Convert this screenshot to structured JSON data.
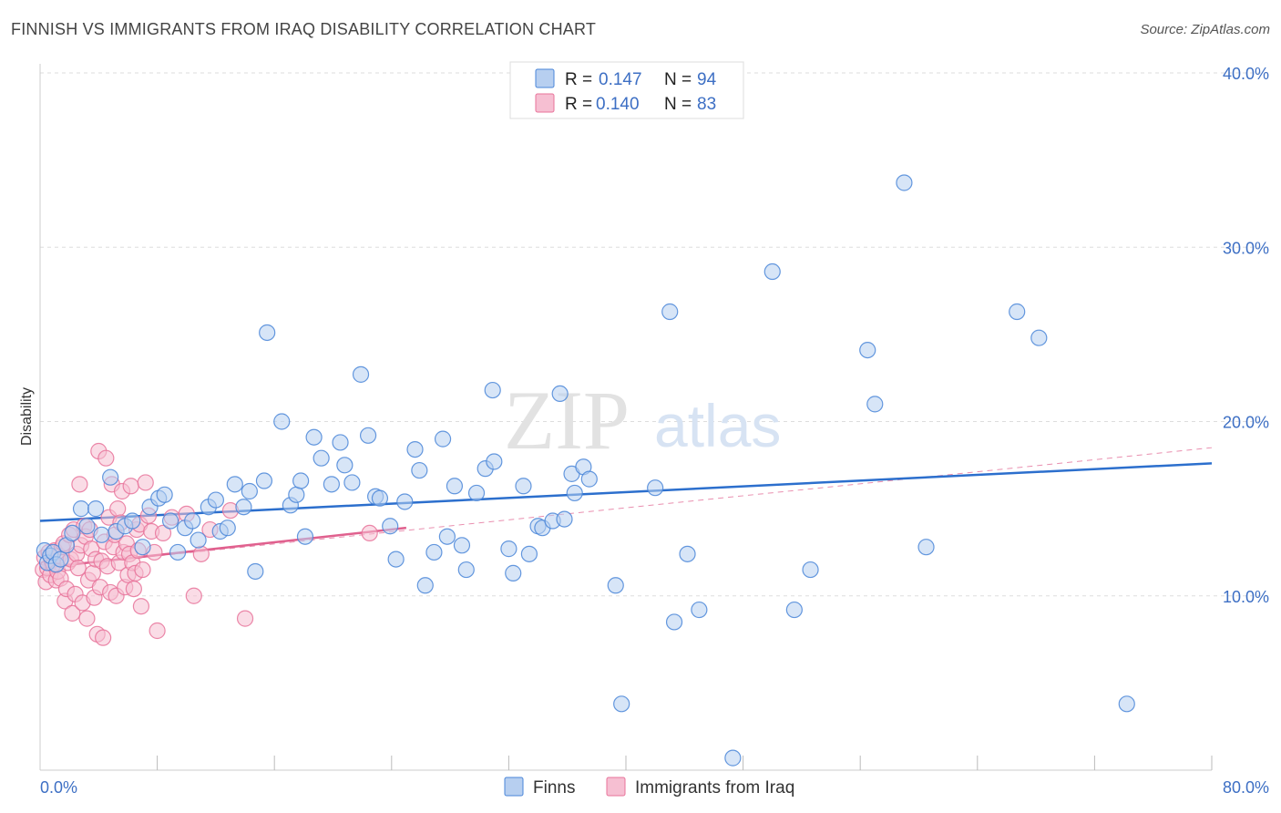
{
  "title": "FINNISH VS IMMIGRANTS FROM IRAQ DISABILITY CORRELATION CHART",
  "source": "Source: ZipAtlas.com",
  "watermark": {
    "zip": "ZIP",
    "atlas": "atlas"
  },
  "colors": {
    "finns": "#4a86d8",
    "finns_fill": "#b7cff0",
    "finns_line": "#2c6fcd",
    "iraq": "#e8739a",
    "iraq_fill": "#f6bfd2",
    "iraq_line": "#e0608e",
    "tick_label": "#3d6fc4",
    "grid": "#dddddd"
  },
  "legend": {
    "rows": [
      {
        "r_label": "R =",
        "r_value": "0.147",
        "n_label": "N =",
        "n_value": "94"
      },
      {
        "r_label": "R =",
        "r_value": "0.140",
        "n_label": "N =",
        "n_value": "83"
      }
    ]
  },
  "chart_data": {
    "type": "scatter",
    "title": "FINNISH VS IMMIGRANTS FROM IRAQ DISABILITY CORRELATION CHART",
    "xlabel": "",
    "ylabel": "Disability",
    "xlim": [
      0,
      80
    ],
    "ylim": [
      0,
      40
    ],
    "x_tick_labels": [
      "0.0%",
      "80.0%"
    ],
    "y_ticks": [
      10,
      20,
      30,
      40
    ],
    "y_tick_labels": [
      "10.0%",
      "20.0%",
      "30.0%",
      "40.0%"
    ],
    "grid": "horizontal dashed",
    "legend_position": "top-center",
    "series": [
      {
        "name": "Finns",
        "r": 0.147,
        "n": 94,
        "trend": {
          "x": [
            0,
            80
          ],
          "y": [
            14.3,
            17.6
          ]
        },
        "points": [
          [
            0.3,
            12.6
          ],
          [
            0.5,
            11.9
          ],
          [
            0.7,
            12.3
          ],
          [
            0.9,
            12.5
          ],
          [
            1.1,
            11.8
          ],
          [
            1.4,
            12.1
          ],
          [
            1.8,
            12.9
          ],
          [
            2.2,
            13.6
          ],
          [
            2.8,
            15.0
          ],
          [
            3.2,
            14.0
          ],
          [
            3.8,
            15.0
          ],
          [
            4.2,
            13.5
          ],
          [
            4.8,
            16.8
          ],
          [
            5.2,
            13.7
          ],
          [
            5.8,
            14.0
          ],
          [
            6.3,
            14.3
          ],
          [
            7.0,
            12.8
          ],
          [
            7.5,
            15.1
          ],
          [
            8.1,
            15.6
          ],
          [
            8.5,
            15.8
          ],
          [
            8.9,
            14.3
          ],
          [
            9.4,
            12.5
          ],
          [
            9.9,
            13.9
          ],
          [
            10.4,
            14.3
          ],
          [
            10.8,
            13.2
          ],
          [
            11.5,
            15.1
          ],
          [
            12.0,
            15.5
          ],
          [
            12.3,
            13.7
          ],
          [
            12.8,
            13.9
          ],
          [
            13.3,
            16.4
          ],
          [
            13.9,
            15.1
          ],
          [
            14.3,
            16.0
          ],
          [
            14.7,
            11.4
          ],
          [
            15.3,
            16.6
          ],
          [
            15.5,
            25.1
          ],
          [
            16.5,
            20.0
          ],
          [
            17.1,
            15.2
          ],
          [
            17.5,
            15.8
          ],
          [
            17.8,
            16.6
          ],
          [
            18.1,
            13.4
          ],
          [
            18.7,
            19.1
          ],
          [
            19.2,
            17.9
          ],
          [
            19.9,
            16.4
          ],
          [
            20.5,
            18.8
          ],
          [
            20.8,
            17.5
          ],
          [
            21.3,
            16.5
          ],
          [
            21.9,
            22.7
          ],
          [
            22.4,
            19.2
          ],
          [
            22.9,
            15.7
          ],
          [
            23.2,
            15.6
          ],
          [
            23.9,
            14.0
          ],
          [
            24.3,
            12.1
          ],
          [
            24.9,
            15.4
          ],
          [
            25.6,
            18.4
          ],
          [
            25.9,
            17.2
          ],
          [
            26.3,
            10.6
          ],
          [
            26.9,
            12.5
          ],
          [
            27.5,
            19.0
          ],
          [
            27.8,
            13.4
          ],
          [
            28.3,
            16.3
          ],
          [
            28.8,
            12.9
          ],
          [
            29.1,
            11.5
          ],
          [
            29.8,
            15.9
          ],
          [
            30.4,
            17.3
          ],
          [
            30.9,
            21.8
          ],
          [
            31.0,
            17.7
          ],
          [
            32.0,
            12.7
          ],
          [
            32.3,
            11.3
          ],
          [
            33.0,
            16.3
          ],
          [
            33.4,
            12.4
          ],
          [
            34.0,
            14.0
          ],
          [
            34.3,
            13.9
          ],
          [
            35.0,
            14.3
          ],
          [
            35.5,
            21.6
          ],
          [
            35.8,
            14.4
          ],
          [
            36.3,
            17.0
          ],
          [
            36.5,
            15.9
          ],
          [
            37.1,
            17.4
          ],
          [
            37.5,
            16.7
          ],
          [
            39.3,
            10.6
          ],
          [
            39.7,
            3.8
          ],
          [
            42.0,
            16.2
          ],
          [
            43.0,
            26.3
          ],
          [
            43.3,
            8.5
          ],
          [
            44.2,
            12.4
          ],
          [
            45.0,
            9.2
          ],
          [
            50.0,
            28.6
          ],
          [
            51.5,
            9.2
          ],
          [
            52.6,
            11.5
          ],
          [
            56.5,
            24.1
          ],
          [
            57.0,
            21.0
          ],
          [
            59.0,
            33.7
          ],
          [
            60.5,
            12.8
          ],
          [
            66.7,
            26.3
          ],
          [
            68.2,
            24.8
          ],
          [
            74.2,
            3.8
          ],
          [
            47.3,
            0.7
          ]
        ]
      },
      {
        "name": "Immigrants from Iraq",
        "r": 0.14,
        "n": 83,
        "trend": {
          "x": [
            0,
            25
          ],
          "y": [
            11.6,
            13.9
          ]
        },
        "trend_extended": {
          "x": [
            0,
            80
          ],
          "y": [
            11.6,
            18.5
          ]
        },
        "points": [
          [
            0.2,
            11.5
          ],
          [
            0.3,
            12.2
          ],
          [
            0.4,
            10.8
          ],
          [
            0.5,
            11.6
          ],
          [
            0.6,
            12.5
          ],
          [
            0.7,
            11.2
          ],
          [
            0.8,
            12.0
          ],
          [
            0.9,
            11.8
          ],
          [
            1.0,
            12.6
          ],
          [
            1.1,
            10.9
          ],
          [
            1.2,
            11.4
          ],
          [
            1.3,
            12.3
          ],
          [
            1.4,
            11.0
          ],
          [
            1.5,
            12.8
          ],
          [
            1.6,
            13.0
          ],
          [
            1.7,
            9.7
          ],
          [
            1.8,
            10.4
          ],
          [
            1.9,
            11.9
          ],
          [
            2.0,
            13.5
          ],
          [
            2.1,
            12.1
          ],
          [
            2.2,
            9.0
          ],
          [
            2.3,
            13.8
          ],
          [
            2.4,
            10.1
          ],
          [
            2.5,
            12.4
          ],
          [
            2.6,
            11.6
          ],
          [
            2.7,
            16.4
          ],
          [
            2.8,
            12.9
          ],
          [
            2.9,
            9.6
          ],
          [
            3.0,
            14.0
          ],
          [
            3.1,
            13.4
          ],
          [
            3.2,
            8.7
          ],
          [
            3.3,
            10.9
          ],
          [
            3.4,
            13.8
          ],
          [
            3.5,
            12.7
          ],
          [
            3.6,
            11.3
          ],
          [
            3.7,
            9.9
          ],
          [
            3.8,
            12.1
          ],
          [
            3.9,
            7.8
          ],
          [
            4.0,
            18.3
          ],
          [
            4.1,
            10.5
          ],
          [
            4.2,
            12.0
          ],
          [
            4.3,
            7.6
          ],
          [
            4.4,
            13.1
          ],
          [
            4.5,
            17.9
          ],
          [
            4.6,
            11.7
          ],
          [
            4.7,
            14.5
          ],
          [
            4.8,
            10.2
          ],
          [
            4.9,
            16.4
          ],
          [
            5.0,
            12.8
          ],
          [
            5.1,
            13.5
          ],
          [
            5.2,
            10.0
          ],
          [
            5.3,
            15.0
          ],
          [
            5.4,
            11.9
          ],
          [
            5.5,
            14.2
          ],
          [
            5.6,
            16.0
          ],
          [
            5.7,
            12.5
          ],
          [
            5.8,
            10.5
          ],
          [
            5.9,
            13.0
          ],
          [
            6.0,
            11.2
          ],
          [
            6.1,
            12.4
          ],
          [
            6.2,
            16.3
          ],
          [
            6.3,
            11.9
          ],
          [
            6.4,
            10.4
          ],
          [
            6.5,
            11.3
          ],
          [
            6.6,
            13.8
          ],
          [
            6.7,
            12.6
          ],
          [
            6.8,
            14.1
          ],
          [
            6.9,
            9.4
          ],
          [
            7.0,
            11.5
          ],
          [
            7.2,
            16.5
          ],
          [
            7.4,
            14.6
          ],
          [
            7.6,
            13.7
          ],
          [
            7.8,
            12.5
          ],
          [
            8.0,
            8.0
          ],
          [
            8.4,
            13.6
          ],
          [
            9.0,
            14.5
          ],
          [
            10.0,
            14.7
          ],
          [
            10.5,
            10.0
          ],
          [
            11.0,
            12.4
          ],
          [
            11.6,
            13.8
          ],
          [
            13.0,
            14.9
          ],
          [
            14.0,
            8.7
          ],
          [
            22.5,
            13.6
          ]
        ]
      }
    ]
  }
}
